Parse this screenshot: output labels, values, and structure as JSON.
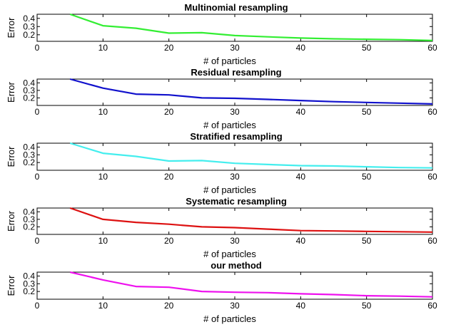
{
  "chart_data": [
    {
      "type": "line",
      "title": "Multinomial resampling",
      "xlabel": "# of particles",
      "ylabel": "Error",
      "xlim": [
        0,
        60
      ],
      "ylim": [
        0.12,
        0.45
      ],
      "xticks": [
        "0",
        "10",
        "20",
        "30",
        "40",
        "50",
        "60"
      ],
      "yticks": [
        "0.2",
        "0.3",
        "0.4"
      ],
      "color": "#33ee33",
      "series": [
        {
          "x": [
            5,
            10,
            15,
            20,
            25,
            30,
            35,
            40,
            45,
            50,
            55,
            60
          ],
          "values": [
            0.45,
            0.31,
            0.28,
            0.22,
            0.225,
            0.19,
            0.175,
            0.16,
            0.15,
            0.145,
            0.14,
            0.13
          ]
        }
      ]
    },
    {
      "type": "line",
      "title": "Residual resampling",
      "xlabel": "# of particles",
      "ylabel": "Error",
      "xlim": [
        0,
        60
      ],
      "ylim": [
        0.1,
        0.45
      ],
      "xticks": [
        "0",
        "10",
        "20",
        "30",
        "40",
        "50",
        "60"
      ],
      "yticks": [
        "0.2",
        "0.3",
        "0.4"
      ],
      "color": "#1111cc",
      "series": [
        {
          "x": [
            5,
            10,
            15,
            20,
            25,
            30,
            35,
            40,
            45,
            50,
            55,
            60
          ],
          "values": [
            0.45,
            0.33,
            0.25,
            0.24,
            0.2,
            0.195,
            0.18,
            0.165,
            0.15,
            0.14,
            0.13,
            0.12
          ]
        }
      ]
    },
    {
      "type": "line",
      "title": "Stratified resampling",
      "xlabel": "# of particles",
      "ylabel": "Error",
      "xlim": [
        0,
        60
      ],
      "ylim": [
        0.1,
        0.45
      ],
      "xticks": [
        "0",
        "10",
        "20",
        "30",
        "40",
        "50",
        "60"
      ],
      "yticks": [
        "0.2",
        "0.3",
        "0.4"
      ],
      "color": "#44eeee",
      "series": [
        {
          "x": [
            5,
            10,
            15,
            20,
            25,
            30,
            35,
            40,
            45,
            50,
            55,
            60
          ],
          "values": [
            0.45,
            0.32,
            0.28,
            0.22,
            0.225,
            0.19,
            0.175,
            0.16,
            0.155,
            0.145,
            0.135,
            0.13
          ]
        }
      ]
    },
    {
      "type": "line",
      "title": "Systematic resampling",
      "xlabel": "# of particles",
      "ylabel": "Error",
      "xlim": [
        0,
        60
      ],
      "ylim": [
        0.1,
        0.45
      ],
      "xticks": [
        "0",
        "10",
        "20",
        "30",
        "40",
        "50",
        "60"
      ],
      "yticks": [
        "0.2",
        "0.3",
        "0.4"
      ],
      "color": "#dd1111",
      "series": [
        {
          "x": [
            5,
            10,
            15,
            20,
            25,
            30,
            35,
            40,
            45,
            50,
            55,
            60
          ],
          "values": [
            0.45,
            0.3,
            0.26,
            0.235,
            0.2,
            0.19,
            0.17,
            0.15,
            0.145,
            0.14,
            0.135,
            0.13
          ]
        }
      ]
    },
    {
      "type": "line",
      "title": "our method",
      "xlabel": "# of particles",
      "ylabel": "Error",
      "xlim": [
        0,
        60
      ],
      "ylim": [
        0.1,
        0.45
      ],
      "xticks": [
        "0",
        "10",
        "20",
        "30",
        "40",
        "50",
        "60"
      ],
      "yticks": [
        "0.2",
        "0.3",
        "0.4"
      ],
      "color": "#ee11ee",
      "series": [
        {
          "x": [
            5,
            10,
            15,
            20,
            25,
            30,
            35,
            40,
            45,
            50,
            55,
            60
          ],
          "values": [
            0.45,
            0.35,
            0.265,
            0.255,
            0.2,
            0.19,
            0.185,
            0.17,
            0.16,
            0.145,
            0.14,
            0.13
          ]
        }
      ]
    }
  ]
}
